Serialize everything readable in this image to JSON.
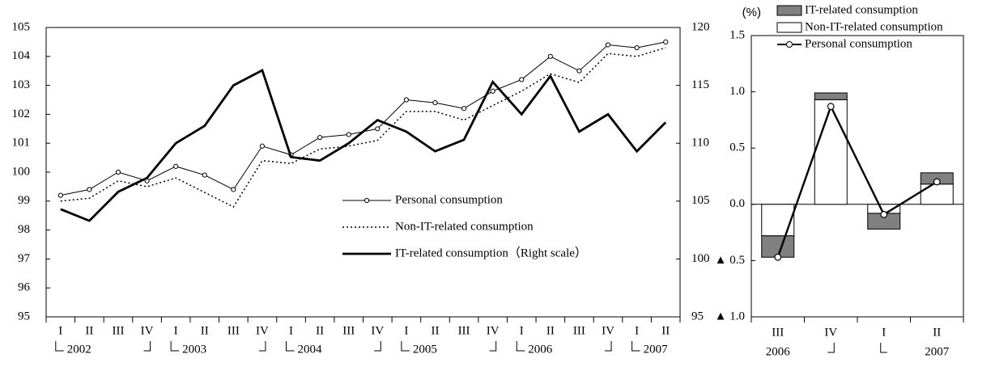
{
  "chart_data": [
    {
      "type": "line",
      "categories": [
        "I",
        "II",
        "III",
        "IV",
        "I",
        "II",
        "III",
        "IV",
        "I",
        "II",
        "III",
        "IV",
        "I",
        "II",
        "III",
        "IV",
        "I",
        "II",
        "III",
        "IV",
        "I",
        "II"
      ],
      "year_labels": [
        "2002",
        "2003",
        "2004",
        "2005",
        "2006",
        "2007"
      ],
      "ylim": [
        95,
        105
      ],
      "yticks": [
        95,
        96,
        97,
        98,
        99,
        100,
        101,
        102,
        103,
        104,
        105
      ],
      "y2lim": [
        95,
        120
      ],
      "y2ticks": [
        95,
        100,
        105,
        110,
        115,
        120
      ],
      "legend": "center",
      "series": [
        {
          "name": "Personal consumption",
          "color": "#000000",
          "style": "solid-marker",
          "values": [
            99.2,
            99.4,
            100.0,
            99.7,
            100.2,
            99.9,
            99.4,
            100.9,
            100.6,
            101.2,
            101.3,
            101.5,
            102.5,
            102.4,
            102.2,
            102.8,
            103.2,
            104.0,
            103.5,
            104.4,
            104.3,
            104.5
          ]
        },
        {
          "name": "Non-IT-related consumption",
          "color": "#000000",
          "style": "dotted",
          "values": [
            99.0,
            99.1,
            99.7,
            99.5,
            99.8,
            99.3,
            98.8,
            100.4,
            100.3,
            100.8,
            100.9,
            101.1,
            102.1,
            102.1,
            101.8,
            102.3,
            102.8,
            103.4,
            103.1,
            104.1,
            104.0,
            104.3
          ]
        },
        {
          "name": "IT-related consumption（Right scale）",
          "color": "#000000",
          "style": "thick",
          "axis": "y2",
          "values": [
            104.3,
            103.3,
            105.8,
            107.0,
            110.0,
            111.5,
            115.0,
            116.3,
            108.8,
            108.5,
            110.0,
            112.0,
            111.0,
            109.3,
            110.3,
            115.3,
            112.5,
            115.8,
            111.0,
            112.5,
            109.3,
            111.8
          ]
        }
      ]
    },
    {
      "type": "stacked-bar",
      "unit_label": "(%)",
      "categories": [
        "III",
        "IV",
        "I",
        "II"
      ],
      "year_labels": [
        "2006",
        "2007"
      ],
      "ylim": [
        -1.0,
        1.5
      ],
      "yticks": [
        {
          "value": -1.0,
          "label": "▲ 1.0"
        },
        {
          "value": -0.5,
          "label": "▲ 0.5"
        },
        {
          "value": 0,
          "label": "0.0"
        },
        {
          "value": 0.5,
          "label": "0.5"
        },
        {
          "value": 1.0,
          "label": "1.0"
        },
        {
          "value": 1.5,
          "label": "1.5"
        }
      ],
      "legend": "upper left",
      "series": [
        {
          "name": "IT-related consumption",
          "color": "#808080",
          "kind": "bar",
          "values": [
            -0.19,
            0.06,
            -0.14,
            0.1
          ]
        },
        {
          "name": "Non-IT-related consumption",
          "color": "#ffffff",
          "kind": "bar",
          "values": [
            -0.28,
            0.93,
            -0.08,
            0.18
          ]
        },
        {
          "name": "Personal consumption",
          "color": "#000000",
          "kind": "line",
          "values": [
            -0.47,
            0.87,
            -0.09,
            0.2
          ]
        }
      ]
    }
  ]
}
